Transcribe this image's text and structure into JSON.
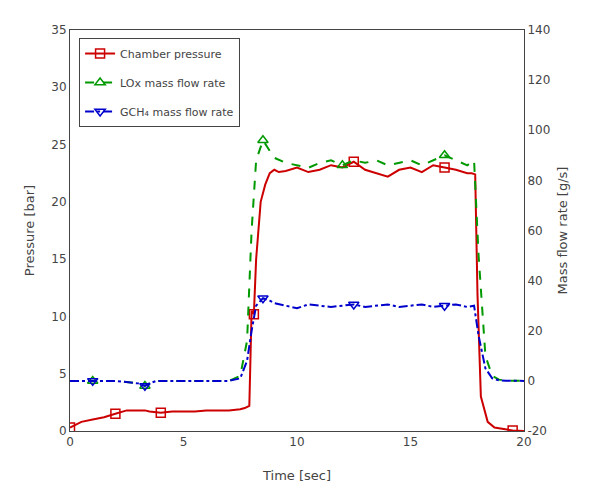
{
  "chart_data": {
    "type": "line",
    "title": "",
    "xlabel": "Time [sec]",
    "ylabel": "Pressure [bar]",
    "y2label": "Mass flow rate [g/s]",
    "xlim": [
      0,
      20
    ],
    "xticks": [
      0,
      5,
      10,
      15,
      20
    ],
    "ylim": [
      0,
      35
    ],
    "yticks": [
      0,
      5,
      10,
      15,
      20,
      25,
      30,
      35
    ],
    "y2lim": [
      -20,
      140
    ],
    "y2ticks": [
      -20,
      0,
      20,
      40,
      60,
      80,
      100,
      120,
      140
    ],
    "grid": false,
    "legend": "upper left",
    "series": [
      {
        "name": "Chamber pressure",
        "color": "#cc0000",
        "axis": "y",
        "line_style": "solid",
        "marker": "square",
        "x": [
          0.0,
          0.2,
          0.5,
          1.0,
          1.5,
          2.0,
          2.5,
          3.0,
          3.3,
          3.5,
          4.0,
          4.5,
          5.0,
          5.5,
          6.0,
          6.5,
          7.0,
          7.5,
          7.7,
          7.9,
          8.0,
          8.1,
          8.2,
          8.4,
          8.6,
          8.8,
          9.0,
          9.2,
          9.5,
          10.0,
          10.5,
          11.0,
          11.5,
          12.0,
          12.5,
          13.0,
          13.5,
          14.0,
          14.5,
          15.0,
          15.5,
          16.0,
          16.5,
          17.0,
          17.5,
          17.7,
          17.85,
          17.95,
          18.1,
          18.4,
          18.7,
          19.0,
          19.5,
          20.0
        ],
        "values": [
          0.3,
          0.5,
          0.8,
          1.0,
          1.2,
          1.5,
          1.8,
          1.8,
          1.8,
          1.7,
          1.6,
          1.7,
          1.7,
          1.7,
          1.8,
          1.8,
          1.8,
          1.9,
          2.0,
          2.2,
          10.5,
          10.2,
          15.0,
          20.0,
          21.5,
          22.5,
          22.8,
          22.6,
          22.7,
          23.0,
          22.6,
          22.8,
          23.2,
          23.0,
          23.5,
          22.8,
          22.5,
          22.2,
          22.8,
          23.0,
          22.6,
          23.2,
          23.0,
          22.8,
          22.5,
          22.5,
          22.4,
          12.0,
          3.0,
          0.8,
          0.3,
          0.2,
          0.05,
          0.0
        ],
        "marker_x": [
          0.0,
          2.0,
          4.0,
          8.1,
          12.5,
          16.5,
          19.5
        ],
        "marker_values": [
          0.3,
          1.5,
          1.6,
          10.2,
          23.5,
          23.0,
          0.05
        ]
      },
      {
        "name": "LOx mass flow rate",
        "color": "#009900",
        "axis": "y2",
        "line_style": "dashed",
        "marker": "triangle-up",
        "x": [
          0.0,
          0.5,
          1.0,
          2.0,
          3.0,
          3.3,
          3.5,
          3.8,
          4.0,
          4.5,
          5.0,
          6.0,
          7.0,
          7.5,
          7.8,
          8.0,
          8.2,
          8.5,
          8.8,
          9.0,
          9.5,
          10.0,
          10.5,
          11.0,
          11.5,
          12.0,
          12.5,
          13.0,
          13.5,
          14.0,
          14.5,
          15.0,
          15.5,
          16.0,
          16.5,
          17.0,
          17.5,
          17.8,
          18.0,
          18.3,
          18.6,
          18.9,
          19.2,
          19.6,
          20.0
        ],
        "values": [
          0,
          0,
          0,
          0,
          -1.0,
          -2.0,
          -1.0,
          0,
          0,
          0,
          0,
          0,
          0,
          2.0,
          16.0,
          60.0,
          88.0,
          96.0,
          92.0,
          89.0,
          87.0,
          86.0,
          85.0,
          87.0,
          88.0,
          86.0,
          88.0,
          87.0,
          88.0,
          86.0,
          87.0,
          88.0,
          86.0,
          88.0,
          90.0,
          88.0,
          86.0,
          88.0,
          50.0,
          10.0,
          2.0,
          0.5,
          0.1,
          0.02,
          0
        ],
        "marker_x": [
          1.0,
          3.3,
          8.5,
          12.0,
          16.5
        ],
        "marker_values": [
          0,
          -2.0,
          96.0,
          86.0,
          90.0
        ]
      },
      {
        "name": "GCH₄ mass flow rate",
        "color": "#0000cc",
        "axis": "y2",
        "line_style": "dashdot",
        "marker": "triangle-down",
        "x": [
          0.0,
          0.5,
          1.0,
          2.0,
          3.0,
          3.3,
          3.5,
          3.8,
          4.0,
          4.5,
          5.0,
          6.0,
          7.0,
          7.5,
          7.8,
          8.0,
          8.2,
          8.5,
          8.8,
          9.0,
          9.5,
          10.0,
          10.5,
          11.0,
          11.5,
          12.0,
          12.5,
          13.0,
          13.5,
          14.0,
          14.5,
          15.0,
          15.5,
          16.0,
          16.5,
          17.0,
          17.5,
          17.8,
          18.0,
          18.3,
          18.6,
          18.9,
          19.2,
          19.6,
          20.0
        ],
        "values": [
          0,
          0,
          0,
          0,
          -1.0,
          -2.0,
          -1.0,
          0,
          0,
          0,
          0,
          0,
          0,
          1.0,
          8.0,
          20.0,
          30.0,
          33.0,
          32.0,
          31.0,
          30.0,
          29.0,
          30.5,
          30.0,
          29.5,
          30.0,
          30.5,
          29.5,
          30.0,
          30.5,
          29.5,
          30.0,
          30.5,
          29.5,
          30.0,
          30.5,
          29.5,
          30.0,
          18.0,
          5.0,
          1.0,
          0.2,
          0.05,
          0.01,
          0
        ],
        "marker_x": [
          1.0,
          3.3,
          8.5,
          12.5,
          16.5
        ],
        "marker_values": [
          0,
          -2.0,
          33.0,
          30.5,
          30.0
        ]
      }
    ]
  }
}
